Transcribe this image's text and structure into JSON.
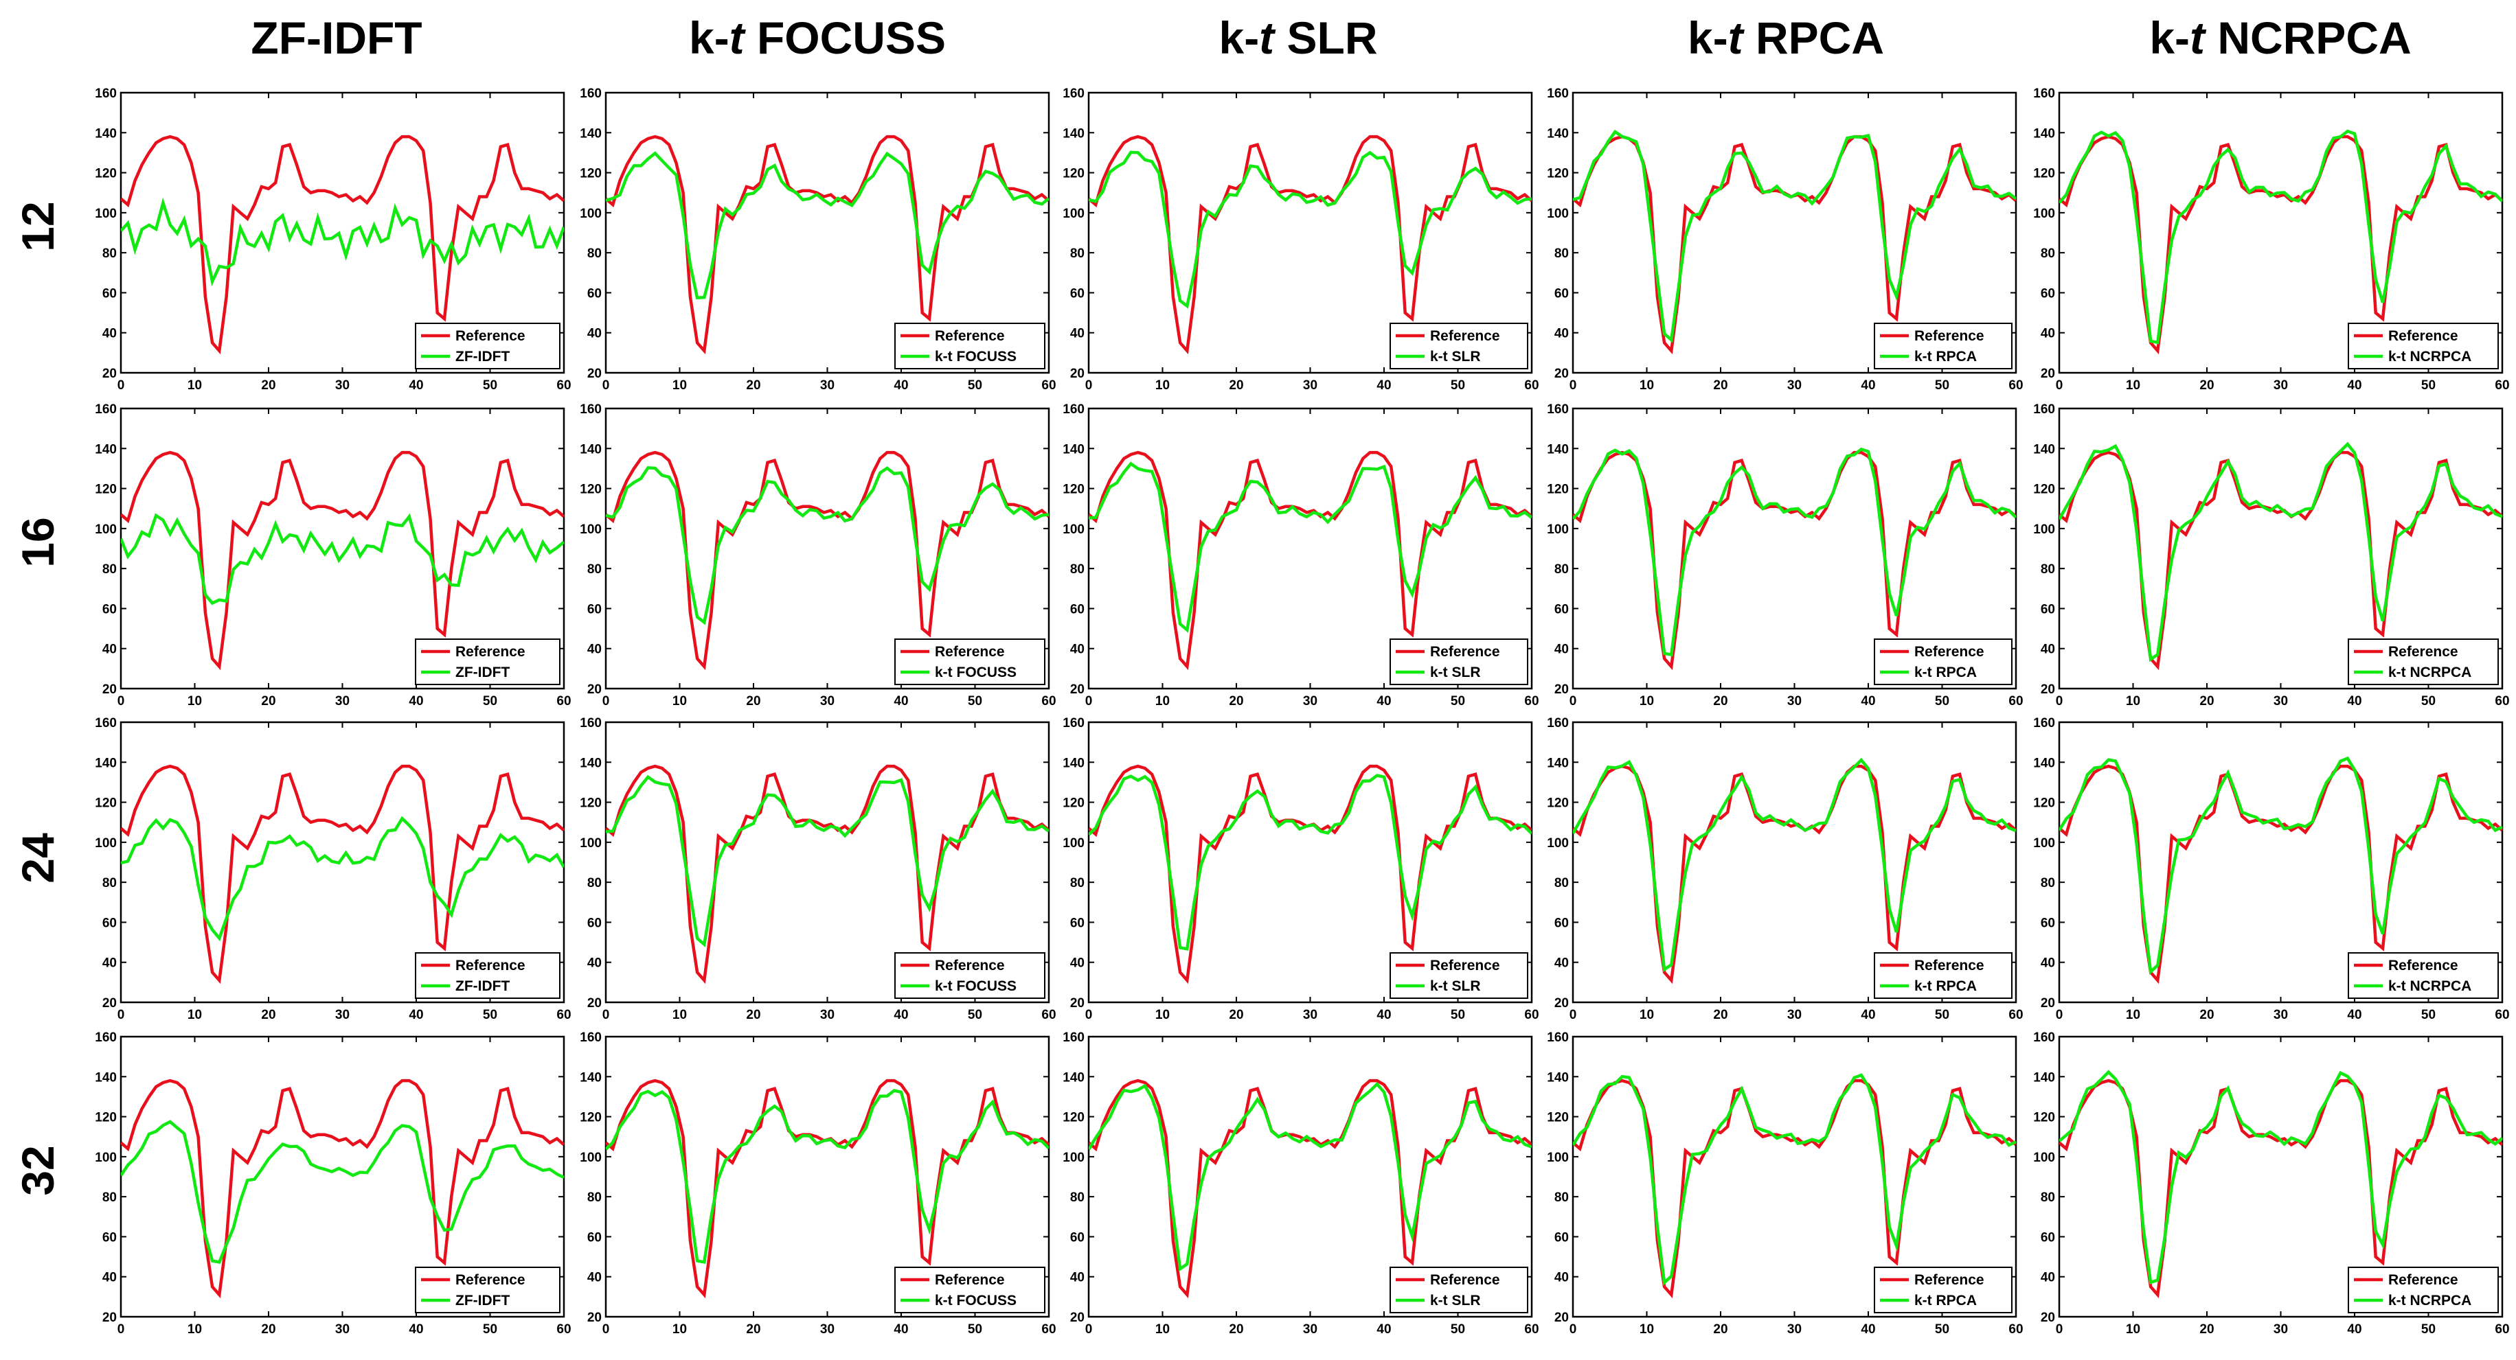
{
  "chart_data": {
    "type": "line",
    "column_titles": [
      {
        "pre": "ZF-IDFT",
        "italic": "",
        "post": ""
      },
      {
        "pre": "k-",
        "italic": "t",
        "post": " FOCUSS"
      },
      {
        "pre": "k-",
        "italic": "t",
        "post": " SLR"
      },
      {
        "pre": "k-",
        "italic": "t",
        "post": " RPCA"
      },
      {
        "pre": "k-",
        "italic": "t",
        "post": " NCRPCA"
      }
    ],
    "row_labels": [
      "12",
      "16",
      "24",
      "32"
    ],
    "legend_labels": [
      "ZF-IDFT",
      "k-t FOCUSS",
      "k-t SLR",
      "k-t RPCA",
      "k-t NCRPCA"
    ],
    "reference_label": "Reference",
    "colors": {
      "reference": "#e8101c",
      "method": "#12e812",
      "axis": "#000000"
    },
    "xlim": [
      0,
      60
    ],
    "ylim": [
      20,
      160
    ],
    "xticks": [
      0,
      10,
      20,
      30,
      40,
      50,
      60
    ],
    "yticks": [
      20,
      40,
      60,
      80,
      100,
      120,
      140,
      160
    ],
    "reference": [
      107,
      104,
      116,
      124,
      130,
      135,
      137,
      138,
      137,
      134,
      125,
      110,
      58,
      35,
      31,
      58,
      103,
      100,
      97,
      104,
      113,
      112,
      115,
      133,
      134,
      124,
      113,
      110,
      111,
      111,
      110,
      108,
      109,
      106,
      108,
      105,
      110,
      118,
      128,
      135,
      138,
      138,
      136,
      131,
      105,
      50,
      47,
      80,
      103,
      100,
      97,
      108,
      108,
      116,
      133,
      134,
      120,
      112,
      112,
      111,
      110,
      107,
      109,
      106
    ],
    "ratio_scales": [
      0.3,
      0.5,
      0.72,
      0.88
    ],
    "method_gains": [
      0.0,
      0.65,
      0.75,
      1.05,
      1.08
    ],
    "method_offsets": [
      0,
      0,
      0,
      0,
      0
    ]
  }
}
